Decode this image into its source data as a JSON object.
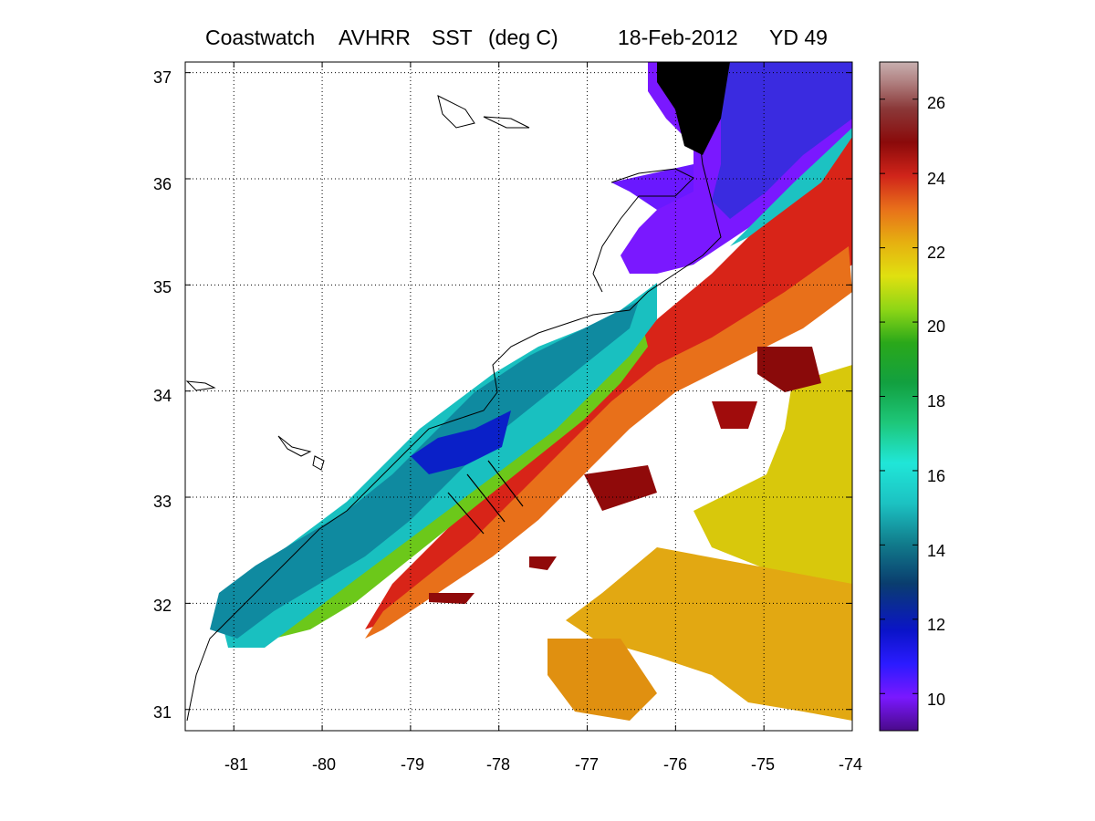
{
  "title": {
    "product": "Coastwatch",
    "sensor": "AVHRR",
    "variable": "SST",
    "units": "(deg C)",
    "date": "18-Feb-2012",
    "yearday": "YD 49"
  },
  "map": {
    "lon_ticks": [
      "-81",
      "-80",
      "-79",
      "-78",
      "-77",
      "-76",
      "-75",
      "-74"
    ],
    "lat_ticks": [
      "37",
      "36",
      "35",
      "34",
      "33",
      "32",
      "31"
    ],
    "lon_range": [
      -81.55,
      -74
    ],
    "lat_range": [
      30.8,
      37.1
    ],
    "grid": "dotted"
  },
  "colorbar": {
    "ticks": [
      "26",
      "24",
      "22",
      "20",
      "18",
      "16",
      "14",
      "12",
      "10"
    ],
    "range": [
      9,
      27
    ]
  },
  "colors": {
    "land": "#ffffff",
    "coast": "#000000"
  }
}
